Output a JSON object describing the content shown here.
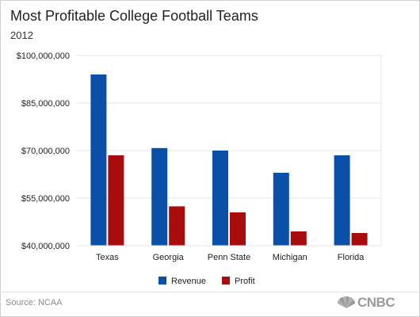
{
  "header": {
    "title": "Most Profitable College Football Teams",
    "subtitle": "2012"
  },
  "footer": {
    "source": "Source: NCAA",
    "logo_text": "CNBC"
  },
  "colors": {
    "revenue": "#0a4fa8",
    "profit": "#a80c0c",
    "grid": "#e6e6e6",
    "axis_text": "#222222"
  },
  "chart_data": {
    "type": "bar",
    "title": "Most Profitable College Football Teams",
    "subtitle": "2012",
    "categories": [
      "Texas",
      "Georgia",
      "Penn State",
      "Michigan",
      "Florida"
    ],
    "series": [
      {
        "name": "Revenue",
        "color": "#0a4fa8",
        "values": [
          94000000,
          70800000,
          70000000,
          63000000,
          68500000
        ]
      },
      {
        "name": "Profit",
        "color": "#a80c0c",
        "values": [
          68500000,
          52400000,
          50500000,
          44500000,
          44000000
        ]
      }
    ],
    "ylim": [
      40000000,
      100000000
    ],
    "yticks": [
      40000000,
      55000000,
      70000000,
      85000000,
      100000000
    ],
    "ytick_labels": [
      "$40,000,000",
      "$55,000,000",
      "$70,000,000",
      "$85,000,000",
      "$100,000,000"
    ],
    "xlabel": "",
    "ylabel": "",
    "grid": true,
    "legend_position": "bottom-center"
  }
}
